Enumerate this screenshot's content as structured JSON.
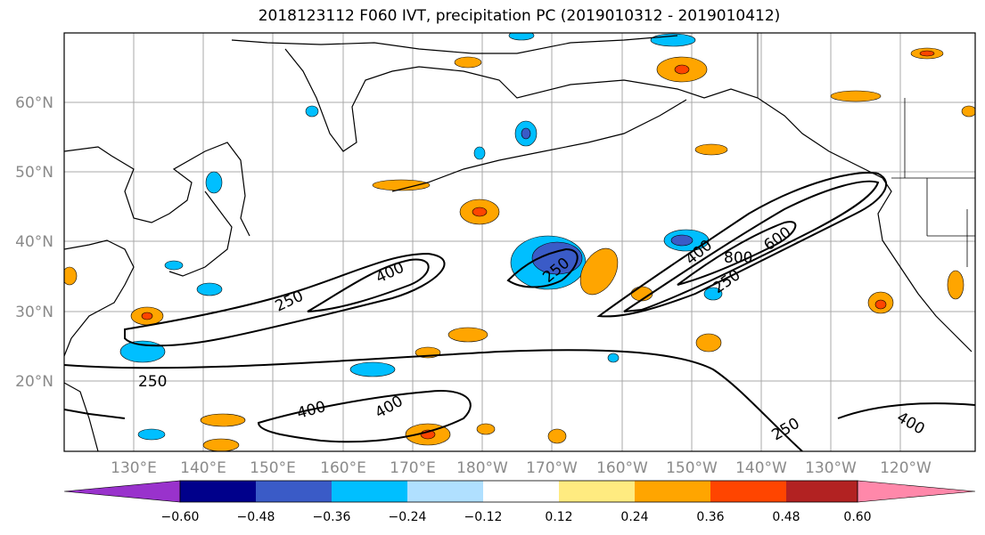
{
  "title": "2018123112 F060 IVT, precipitation PC (2019010312 - 2019010412)",
  "axes": {
    "lat_ticks": [
      "20°N",
      "30°N",
      "40°N",
      "50°N",
      "60°N"
    ],
    "lon_ticks": [
      "130°E",
      "140°E",
      "150°E",
      "160°E",
      "170°E",
      "180°W",
      "170°W",
      "160°W",
      "150°W",
      "140°W",
      "130°W",
      "120°W"
    ]
  },
  "ivt_contour_labels": [
    "250",
    "400",
    "250",
    "250",
    "400",
    "400",
    "250",
    "400",
    "800",
    "600",
    "250",
    "250",
    "400"
  ],
  "colorbar": {
    "tick_labels": [
      "−0.60",
      "−0.48",
      "−0.36",
      "−0.24",
      "−0.12",
      "0.12",
      "0.24",
      "0.36",
      "0.48",
      "0.60"
    ],
    "colors": [
      "#9932cc",
      "#00008b",
      "#3a5bc7",
      "#00bfff",
      "#b0e0ff",
      "#ffffff",
      "#ffeb80",
      "#ffa500",
      "#ff4500",
      "#b22222",
      "#ff88aa"
    ]
  }
}
